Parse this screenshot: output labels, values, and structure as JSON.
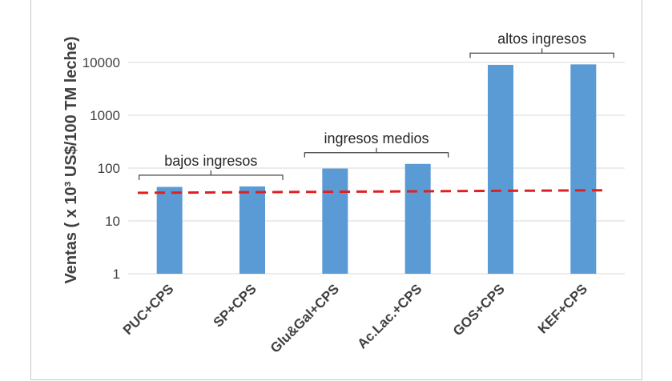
{
  "chart_data": {
    "type": "bar",
    "y_scale": "log",
    "ylabel": "Ventas ( x 10³ US$/100 TM leche)",
    "xlabel": "",
    "title": "",
    "ylim": [
      1,
      10000
    ],
    "y_ticks": [
      "1",
      "10",
      "100",
      "1000",
      "10000"
    ],
    "grid": true,
    "categories": [
      "PUC+CPS",
      "SP+CPS",
      "Glu&Gal+CPS",
      "Ac.Lac.+CPS",
      "GOS+CPS",
      "KEF+CPS"
    ],
    "values": [
      44,
      45,
      98,
      120,
      9000,
      9200
    ],
    "bar_color": "#5b9bd5",
    "reference_line": {
      "style": "dashed",
      "color": "#e02020",
      "start_value": 34,
      "end_value": 38
    },
    "groups": [
      {
        "label": "bajos ingresos",
        "from": 0,
        "to": 1
      },
      {
        "label": "ingresos medios",
        "from": 2,
        "to": 3
      },
      {
        "label": "altos ingresos",
        "from": 4,
        "to": 5
      }
    ]
  }
}
